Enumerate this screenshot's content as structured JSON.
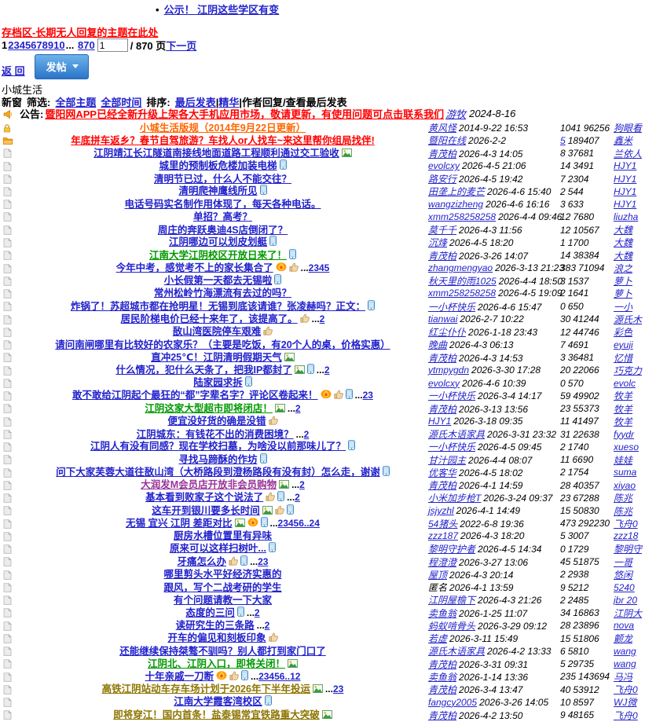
{
  "colors": {
    "link_blue": "#2323cc",
    "title_blue": "#2222cc",
    "sticky_red": "#ff0000",
    "rule_orange": "#ff6600",
    "green": "#009900",
    "purple": "#993399",
    "gold": "#8d7500",
    "button_blue": "#2a75c9"
  },
  "header": {
    "notice_bullet": "•",
    "notice_link": "公示！ 江阴这些学区有变",
    "archive_link": "存档区-长期无人回复的主题在此处",
    "pager": {
      "current": "1",
      "pages": [
        "2",
        "3",
        "4",
        "5",
        "6",
        "7",
        "8",
        "9",
        "10"
      ],
      "ellipsis": "... ",
      "last_page": "870",
      "input_value": "1",
      "total_label": " / 870 页",
      "next_label": "下一页"
    },
    "back_label": "返 回",
    "post_button_label": "发帖",
    "board_title": "小城生活",
    "filter": {
      "new_window": "新窗",
      "filter_label": "筛选:",
      "all_topics": "全部主题",
      "all_time": "全部时间",
      "sort_label": "排序:",
      "last_reply": "最后发表",
      "sep": "|",
      "digest": "精华",
      "tail": "作者回复/查看最后发表"
    }
  },
  "announcement": {
    "label": "公告:",
    "link": "暨阳网APP已经全新升级上架各大手机应用市场，敬请更新，有使用问题可点击联系我们",
    "author": "游牧",
    "date": "2024-8-16"
  },
  "threads": [
    {
      "icon": "lock",
      "color": "orange",
      "title": "小城生活版规（2014年9月22日更新）",
      "badges": [],
      "pages": "",
      "author": "黄风怪",
      "date": "2014-9-22 16:53",
      "replies": "1041",
      "views": "96256",
      "last": "狗眼看"
    },
    {
      "icon": "folder",
      "color": "red",
      "title": "年底拼车返乡？春节自驾旅游？车找人or人找车~来这里帮你组局找伴!",
      "badges": [],
      "pages": "",
      "author": "暨阳在线",
      "date": "2026-2-2",
      "replies": "5",
      "rlink": true,
      "views": "189407",
      "last": "鑫米"
    },
    {
      "icon": "page",
      "color": "blue",
      "title": "江阴靖江长江隧道南接线地面道路工程顺利通过交工验收",
      "badges": [
        "image"
      ],
      "pages": "",
      "author": "青茂柏",
      "date": "2026-4-3 14:05",
      "replies": "8",
      "views": "37681",
      "last": "兰依人"
    },
    {
      "icon": "page",
      "color": "blue",
      "title": "城里的预制板危楼加装电梯",
      "badges": [
        "phone"
      ],
      "pages": "",
      "author": "evolcxy",
      "date": "2026-4-5 21:06",
      "replies": "14",
      "views": "3491",
      "last": "HJY1"
    },
    {
      "icon": "page",
      "color": "blue",
      "title": "清明节已过，什么人不能交往？",
      "badges": [],
      "pages": "",
      "author": "路安行",
      "date": "2026-4-5 19:42",
      "replies": "7",
      "views": "2304",
      "last": "HJY1"
    },
    {
      "icon": "page",
      "color": "blue",
      "title": "清明爬神鹰线所见",
      "badges": [
        "phone"
      ],
      "pages": "",
      "author": "田垄上的麦芒",
      "date": "2026-4-6 15:40",
      "replies": "2",
      "views": "544",
      "last": "HJY1"
    },
    {
      "icon": "page",
      "color": "blue",
      "title": "电话号码实名制作用体现了，每天各种电话。",
      "badges": [],
      "pages": "",
      "author": "wangzizheng",
      "date": "2026-4-6 16:16",
      "replies": "3",
      "views": "633",
      "last": "HJY1"
    },
    {
      "icon": "page",
      "color": "blue",
      "title": "单招？高考？",
      "badges": [],
      "pages": "",
      "author": "xmm258258258",
      "date": "2026-4-4 09:46",
      "replies": "12",
      "views": "7680",
      "last": "liuzha"
    },
    {
      "icon": "page",
      "color": "blue",
      "title": "周庄的奔跃奥迪4S店倒闭了？",
      "badges": [],
      "pages": "",
      "author": "莫千千",
      "date": "2026-4-3 11:56",
      "replies": "12",
      "views": "10567",
      "last": "大魏"
    },
    {
      "icon": "page",
      "color": "blue",
      "title": "江阴哪边可以划皮划艇",
      "badges": [
        "phone"
      ],
      "pages": "",
      "author": "沉烽",
      "date": "2026-4-5 18:20",
      "replies": "1",
      "views": "1700",
      "last": "大魏"
    },
    {
      "icon": "page",
      "color": "green",
      "title": "江南大学江阴校区开放日来了！",
      "badges": [
        "phone"
      ],
      "pages": "",
      "author": "青茂柏",
      "date": "2026-3-26 14:07",
      "replies": "14",
      "views": "38384",
      "last": "大魏"
    },
    {
      "icon": "page",
      "color": "blue",
      "title": "今年中考，感觉考不上的家长集合了",
      "badges": [
        "hot",
        "thumb"
      ],
      "pages": "2345",
      "author": "zhangmengyao",
      "date": "2026-3-13 21:23",
      "replies": "383",
      "views": "71094",
      "last": "浪之"
    },
    {
      "icon": "page",
      "color": "blue",
      "title": "小长假第一天都去无锡啦",
      "badges": [
        "phone"
      ],
      "pages": "",
      "author": "秋天里的雨1025",
      "date": "2026-4-4 18:50",
      "replies": "3",
      "views": "1537",
      "last": "萝卜"
    },
    {
      "icon": "page",
      "color": "blue",
      "title": "常州松岭竹海漂流有去过的吗？",
      "badges": [],
      "pages": "",
      "author": "xmm258258258",
      "date": "2026-4-5 19:09",
      "replies": "2",
      "views": "1641",
      "last": "萝卜"
    },
    {
      "icon": "page",
      "color": "blue",
      "title": "炸锅了！苏超城市都在抢明星！无锡到底该请谁？张凌赫吗？正文：",
      "badges": [
        "phone"
      ],
      "pages": "",
      "author": "一小杯快乐",
      "date": "2026-4-6 15:47",
      "replies": "0",
      "views": "650",
      "last": "一小"
    },
    {
      "icon": "page",
      "color": "blue",
      "title": "居民阶梯电价已经十来年了，该提高了。",
      "badges": [
        "thumb"
      ],
      "pages": "2",
      "author": "tianwai",
      "date": "2026-2-7 10:22",
      "replies": "30",
      "views": "41244",
      "last": "源氏木"
    },
    {
      "icon": "page",
      "color": "blue",
      "title": "敔山湾医院停车艰难",
      "badges": [
        "thumb"
      ],
      "pages": "",
      "author": "红尘仆仆",
      "date": "2026-1-18 23:43",
      "replies": "12",
      "views": "44746",
      "last": "彩色"
    },
    {
      "icon": "page",
      "color": "blue",
      "title": "请问南闸哪里有比较好的农家乐？（主要是吃饭，有20个人的桌，价格实惠）",
      "badges": [],
      "pages": "",
      "author": "晚曲",
      "date": "2026-4-3 06:13",
      "replies": "7",
      "views": "4691",
      "last": "eyuji"
    },
    {
      "icon": "page",
      "color": "blue",
      "title": "直冲25℃！江阴清明假期天气",
      "badges": [
        "image"
      ],
      "pages": "",
      "author": "青茂柏",
      "date": "2026-4-3 14:53",
      "replies": "3",
      "views": "36481",
      "last": "忆惜"
    },
    {
      "icon": "page",
      "color": "blue",
      "title": "什么情况，犯什么天条了，把我IP都封了",
      "badges": [
        "image",
        "phone"
      ],
      "pages": "2",
      "author": "ytmpygdn",
      "date": "2026-3-30 17:28",
      "replies": "20",
      "views": "22066",
      "last": "巧克力"
    },
    {
      "icon": "page",
      "color": "blue",
      "title": "陆家园求拆",
      "badges": [
        "phone"
      ],
      "pages": "",
      "author": "evolcxy",
      "date": "2026-4-6 10:39",
      "replies": "0",
      "views": "570",
      "last": "evolc"
    },
    {
      "icon": "page",
      "color": "blue",
      "title": "敢不敢给江阴起个最狂的“都”字辈名字？评论区卷起来！",
      "badges": [
        "hot",
        "thumb",
        "phone"
      ],
      "pages": "23",
      "author": "一小杯快乐",
      "date": "2026-3-4 14:17",
      "replies": "59",
      "views": "49902",
      "last": "牧羊"
    },
    {
      "icon": "page",
      "color": "green",
      "title": "江阴这家大型超市即将闭店！",
      "badges": [
        "image"
      ],
      "pages": "2",
      "author": "青茂柏",
      "date": "2026-3-13 13:56",
      "replies": "23",
      "views": "55373",
      "last": "牧羊"
    },
    {
      "icon": "page",
      "color": "blue",
      "title": "便宜没好货的确是没错",
      "badges": [
        "thumb"
      ],
      "pages": "",
      "author": "HJY1",
      "date": "2026-3-18 09:35",
      "replies": "11",
      "views": "41497",
      "last": "牧羊"
    },
    {
      "icon": "page",
      "color": "blue",
      "title": "江阴城东：有钱花不出的消费困境？",
      "badges": [],
      "pages": "2",
      "author": "源氏木语家具",
      "date": "2026-3-31 23:32",
      "replies": "31",
      "views": "22638",
      "last": "fyydr"
    },
    {
      "icon": "page",
      "color": "blue",
      "title": "江阴人有没有同感？现在学校扫墓，为啥没以前那味儿了？",
      "badges": [
        "phone"
      ],
      "pages": "",
      "author": "一小杯快乐",
      "date": "2026-4-5 09:45",
      "replies": "2",
      "views": "1740",
      "last": "xueso"
    },
    {
      "icon": "page",
      "color": "blue",
      "title": "寻找马蹄酥的作坊",
      "badges": [
        "phone"
      ],
      "pages": "",
      "author": "甘汁园主",
      "date": "2026-4-4 08:07",
      "replies": "11",
      "views": "6690",
      "last": "娃娃"
    },
    {
      "icon": "page",
      "color": "blue",
      "title": "问下大家芙蓉大道往敔山湾（大桥路段到澄杨路段有没有封）怎么走，谢谢",
      "badges": [
        "phone"
      ],
      "pages": "",
      "author": "优客华",
      "date": "2026-4-5 18:02",
      "replies": "2",
      "views": "1754",
      "last": "suma"
    },
    {
      "icon": "page",
      "color": "purple",
      "title": "大润发M会员店开放非会员购物",
      "badges": [
        "image"
      ],
      "pages": "2",
      "author": "青茂柏",
      "date": "2026-4-1 14:59",
      "replies": "28",
      "views": "40357",
      "last": "xiyao"
    },
    {
      "icon": "page",
      "color": "blue",
      "title": "基本看到败家子这个说法了",
      "badges": [
        "thumb",
        "phone"
      ],
      "pages": "2",
      "author": "小米加步枪T",
      "date": "2026-3-24 09:37",
      "replies": "23",
      "views": "67288",
      "last": "陈兆"
    },
    {
      "icon": "page",
      "color": "blue",
      "title": "这车开到银川要多长时间",
      "badges": [
        "image",
        "thumb",
        "phone"
      ],
      "pages": "",
      "author": "jsjyzhl",
      "date": "2026-4-1 14:49",
      "replies": "15",
      "views": "50830",
      "last": "陈兆"
    },
    {
      "icon": "page",
      "color": "blue",
      "title": "无锡 宜兴 江阴 差距对比",
      "badges": [
        "image",
        "hot",
        "phone"
      ],
      "pages": "23456..24",
      "author": "54猪头",
      "date": "2022-6-8 19:36",
      "replies": "473",
      "views": "292230",
      "last": "飞舟0"
    },
    {
      "icon": "page",
      "color": "blue",
      "title": "厨房水槽位置里有异味",
      "badges": [],
      "pages": "",
      "author": "zzz187",
      "date": "2026-4-3 18:20",
      "replies": "5",
      "views": "3007",
      "last": "zzz18"
    },
    {
      "icon": "page",
      "color": "blue",
      "title": "原来可以这样扫树叶...",
      "badges": [
        "phone"
      ],
      "pages": "",
      "author": "黎明守护者",
      "date": "2026-4-5 14:34",
      "replies": "0",
      "views": "1729",
      "last": "黎明守"
    },
    {
      "icon": "page",
      "color": "blue",
      "title": "牙痛怎么办",
      "badges": [
        "thumb",
        "phone"
      ],
      "pages": "23",
      "author": "程澄澄",
      "date": "2026-3-27 13:06",
      "replies": "45",
      "views": "51875",
      "last": "一哥"
    },
    {
      "icon": "page",
      "color": "blue",
      "title": "哪里剪头水平好经济实惠的",
      "badges": [],
      "pages": "",
      "author": "屋顶",
      "date": "2026-4-3 20:14",
      "replies": "2",
      "views": "2938",
      "last": "悠闲"
    },
    {
      "icon": "page",
      "color": "blue",
      "title": "跟风，写个二战考研的学生",
      "badges": [],
      "pages": "",
      "author": "匿名",
      "anon": true,
      "date": "2026-4-1 13:59",
      "replies": "9",
      "views": "5212",
      "last": "5240"
    },
    {
      "icon": "page",
      "color": "blue",
      "title": "有个问题请教一下大家",
      "badges": [],
      "pages": "",
      "author": "江阴屋檐下",
      "date": "2026-4-3 21:26",
      "replies": "2",
      "views": "2485",
      "last": "jbr 20"
    },
    {
      "icon": "page",
      "color": "blue",
      "title": "态度的三问",
      "badges": [
        "phone"
      ],
      "pages": "2",
      "author": "卖鱼翁",
      "date": "2026-1-25 11:07",
      "replies": "34",
      "views": "16863",
      "last": "江阴大"
    },
    {
      "icon": "page",
      "color": "blue",
      "title": "读研究生的三条路",
      "badges": [],
      "pages": "2",
      "author": "蚂蚁啃骨头",
      "date": "2026-3-29 09:12",
      "replies": "28",
      "views": "23896",
      "last": "nova"
    },
    {
      "icon": "page",
      "color": "blue",
      "title": "开车的偏见和刻板印象",
      "badges": [
        "thumb"
      ],
      "pages": "",
      "author": "若虚",
      "date": "2026-3-11 15:49",
      "replies": "15",
      "views": "51806",
      "last": "颤龙"
    },
    {
      "icon": "page",
      "color": "blue",
      "title": "还能继续保持桀骜不驯吗？别人都打到家门口了",
      "badges": [],
      "pages": "",
      "author": "源氏木语家具",
      "date": "2026-4-2 13:33",
      "replies": "6",
      "views": "5810",
      "last": "wang"
    },
    {
      "icon": "page",
      "color": "green",
      "title": "江阴北、江阴入口，即将关闭！",
      "badges": [
        "image"
      ],
      "pages": "",
      "author": "青茂柏",
      "date": "2026-3-31 09:31",
      "replies": "5",
      "views": "29735",
      "last": "wang"
    },
    {
      "icon": "page",
      "color": "blue",
      "title": "十年亲戚一刀断",
      "badges": [
        "hot",
        "thumb",
        "phone"
      ],
      "pages": "23456..12",
      "author": "卖鱼翁",
      "date": "2026-1-14 13:36",
      "replies": "235",
      "views": "143694",
      "last": "马冯"
    },
    {
      "icon": "page",
      "color": "gold",
      "title": "高铁江阴站动车存车场计划于2026年下半年投运",
      "badges": [
        "image"
      ],
      "pages": "23",
      "author": "青茂柏",
      "date": "2026-3-4 13:47",
      "replies": "40",
      "views": "53912",
      "last": "飞舟0"
    },
    {
      "icon": "page",
      "color": "blue",
      "title": "江南大学霞客湾校区",
      "badges": [
        "phone"
      ],
      "pages": "",
      "author": "fangcy2005",
      "date": "2026-3-26 14:05",
      "replies": "10",
      "views": "8597",
      "last": "WJ微"
    },
    {
      "icon": "page",
      "color": "gold",
      "title": "即将穿江！国内首条！盐泰锡常宜铁路重大突破",
      "badges": [
        "image"
      ],
      "pages": "",
      "author": "青茂柏",
      "date": "2026-4-2 13:50",
      "replies": "9",
      "views": "48165",
      "last": "飞舟0"
    }
  ]
}
